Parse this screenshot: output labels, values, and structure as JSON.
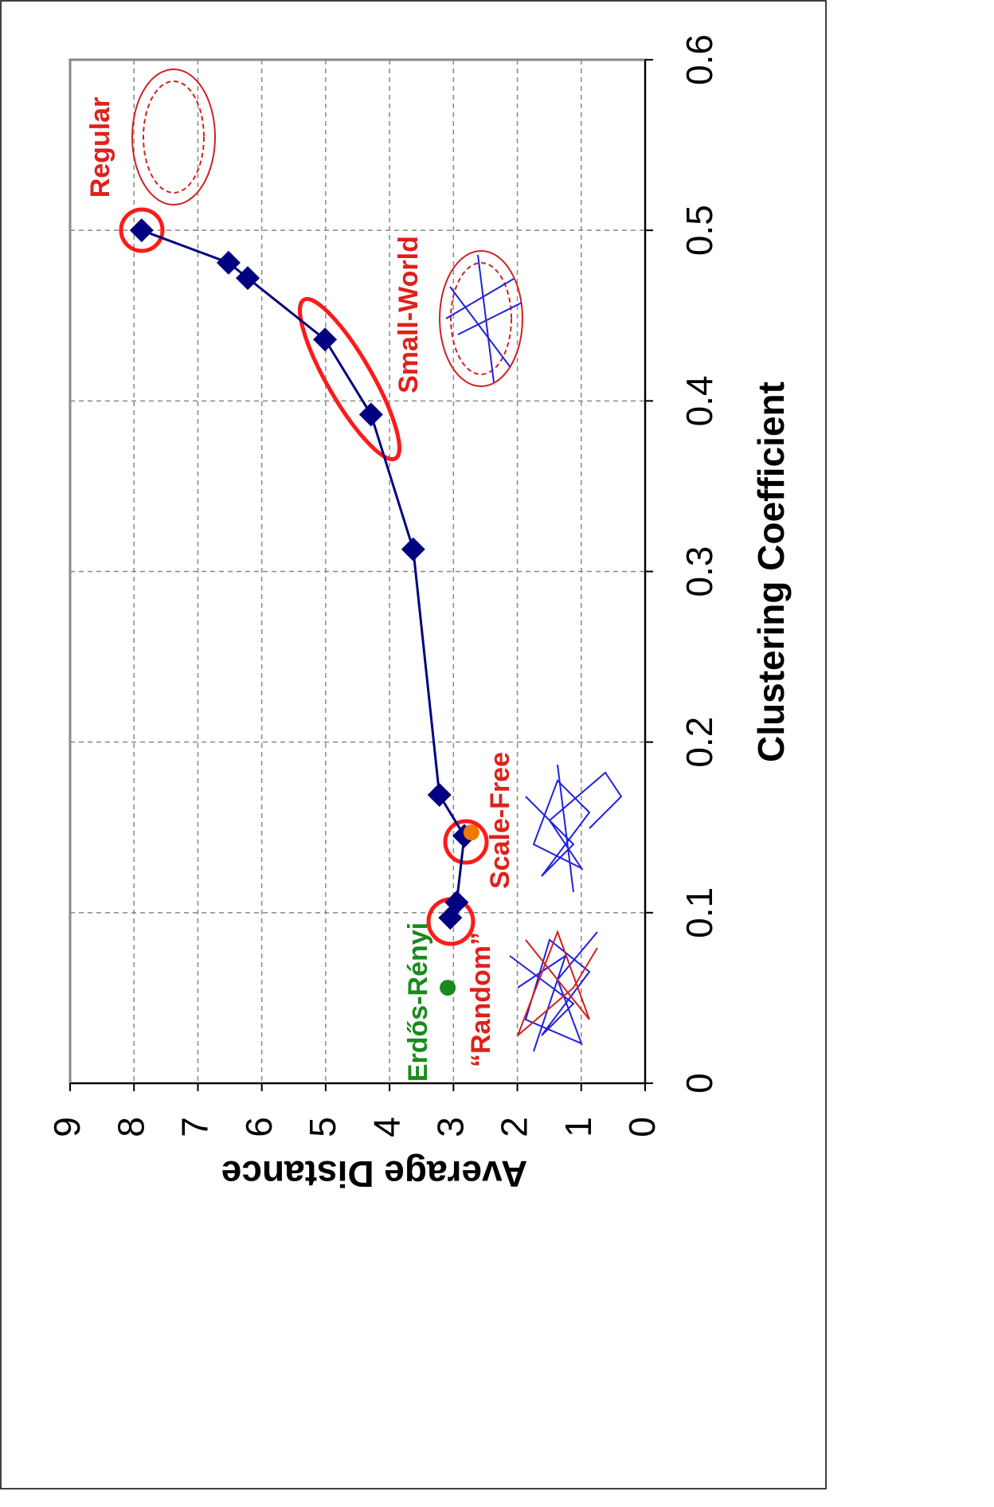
{
  "chart_data": {
    "type": "line",
    "x_label": "Clustering Coefficient",
    "y_label": "Average Distance",
    "x": [
      0.097,
      0.106,
      0.145,
      0.169,
      0.313,
      0.392,
      0.436,
      0.472,
      0.481,
      0.5
    ],
    "values": [
      3.05,
      2.95,
      2.83,
      3.22,
      3.63,
      4.29,
      5.01,
      6.22,
      6.52,
      7.88
    ],
    "color": "#000080",
    "points": [
      {
        "x": 0.147,
        "y": 2.72,
        "color": "#f07800"
      },
      {
        "x": 0.056,
        "y": 3.09,
        "color": "#1a8a1a"
      }
    ],
    "annotations": [
      {
        "text": "Regular",
        "color": "#e0201a"
      },
      {
        "text": "Small-World",
        "color": "#e0201a"
      },
      {
        "text": "Scale-Free",
        "color": "#e0201a"
      },
      {
        "text": "“Random”",
        "color": "#e0201a"
      },
      {
        "text": "Erdős-Rényi",
        "color": "#1a8a1a"
      }
    ],
    "xlim": [
      0,
      0.6
    ],
    "xticks": [
      0,
      0.1,
      0.2,
      0.3,
      0.4,
      0.5,
      0.6
    ],
    "ylim": [
      0,
      9
    ],
    "yticks": [
      0,
      1,
      2,
      3,
      4,
      5,
      6,
      7,
      8,
      9
    ],
    "grid": true
  }
}
